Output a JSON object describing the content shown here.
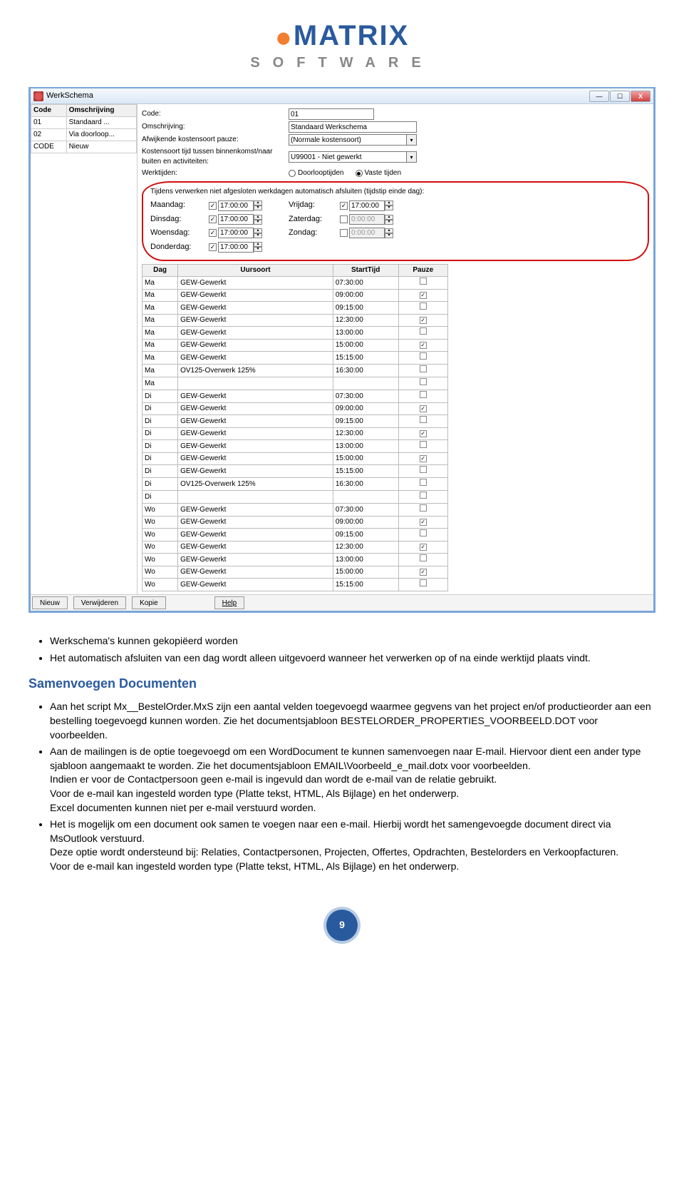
{
  "logo": {
    "main": "MATRIX",
    "sub": "SOFTWARE"
  },
  "window": {
    "title": "WerkSchema",
    "codelist": {
      "columns": [
        "Code",
        "Omschrijving"
      ],
      "rows": [
        [
          "01",
          "Standaard ..."
        ],
        [
          "02",
          "Via doorloop..."
        ],
        [
          "CODE",
          "Nieuw"
        ]
      ]
    },
    "form": {
      "code_label": "Code:",
      "code_value": "01",
      "desc_label": "Omschrijving:",
      "desc_value": "Standaard Werkschema",
      "pause_label": "Afwijkende kostensoort pauze:",
      "pause_value": "(Normale kostensoort)",
      "cost_label": "Kostensoort tijd tussen binnenkomst/naar buiten en activiteiten:",
      "cost_value": "U99001 - Niet gewerkt",
      "worktimes_label": "Werktijden:",
      "radio1": "Doorlooptijden",
      "radio2": "Vaste tijden"
    },
    "group": {
      "caption": "Tijdens verwerken niet afgesloten werkdagen automatisch afsluiten (tijdstip einde dag):",
      "days": [
        {
          "label": "Maandag:",
          "checked": true,
          "time": "17:00:00",
          "label2": "Vrijdag:",
          "checked2": true,
          "time2": "17:00:00",
          "dis2": false
        },
        {
          "label": "Dinsdag:",
          "checked": true,
          "time": "17:00:00",
          "label2": "Zaterdag:",
          "checked2": false,
          "time2": "0:00:00",
          "dis2": true
        },
        {
          "label": "Woensdag:",
          "checked": true,
          "time": "17:00:00",
          "label2": "Zondag:",
          "checked2": false,
          "time2": "0:00:00",
          "dis2": true
        },
        {
          "label": "Donderdag:",
          "checked": true,
          "time": "17:00:00",
          "label2": "",
          "checked2": false,
          "time2": "",
          "dis2": true
        }
      ]
    },
    "sched": {
      "columns": [
        "Dag",
        "Uursoort",
        "StartTijd",
        "Pauze"
      ],
      "rows": [
        [
          "Ma",
          "GEW-Gewerkt",
          "07:30:00",
          false
        ],
        [
          "Ma",
          "GEW-Gewerkt",
          "09:00:00",
          true
        ],
        [
          "Ma",
          "GEW-Gewerkt",
          "09:15:00",
          false
        ],
        [
          "Ma",
          "GEW-Gewerkt",
          "12:30:00",
          true
        ],
        [
          "Ma",
          "GEW-Gewerkt",
          "13:00:00",
          false
        ],
        [
          "Ma",
          "GEW-Gewerkt",
          "15:00:00",
          true
        ],
        [
          "Ma",
          "GEW-Gewerkt",
          "15:15:00",
          false
        ],
        [
          "Ma",
          "OV125-Overwerk 125%",
          "16:30:00",
          false
        ],
        [
          "Ma",
          "",
          "",
          false
        ],
        [
          "Di",
          "GEW-Gewerkt",
          "07:30:00",
          false
        ],
        [
          "Di",
          "GEW-Gewerkt",
          "09:00:00",
          true
        ],
        [
          "Di",
          "GEW-Gewerkt",
          "09:15:00",
          false
        ],
        [
          "Di",
          "GEW-Gewerkt",
          "12:30:00",
          true
        ],
        [
          "Di",
          "GEW-Gewerkt",
          "13:00:00",
          false
        ],
        [
          "Di",
          "GEW-Gewerkt",
          "15:00:00",
          true
        ],
        [
          "Di",
          "GEW-Gewerkt",
          "15:15:00",
          false
        ],
        [
          "Di",
          "OV125-Overwerk 125%",
          "16:30:00",
          false
        ],
        [
          "Di",
          "",
          "",
          false
        ],
        [
          "Wo",
          "GEW-Gewerkt",
          "07:30:00",
          false
        ],
        [
          "Wo",
          "GEW-Gewerkt",
          "09:00:00",
          true
        ],
        [
          "Wo",
          "GEW-Gewerkt",
          "09:15:00",
          false
        ],
        [
          "Wo",
          "GEW-Gewerkt",
          "12:30:00",
          true
        ],
        [
          "Wo",
          "GEW-Gewerkt",
          "13:00:00",
          false
        ],
        [
          "Wo",
          "GEW-Gewerkt",
          "15:00:00",
          true
        ],
        [
          "Wo",
          "GEW-Gewerkt",
          "15:15:00",
          false
        ]
      ]
    },
    "buttons": {
      "nieuw": "Nieuw",
      "verwijderen": "Verwijderen",
      "kopie": "Kopie",
      "help": "Help"
    }
  },
  "text": {
    "bullets1": [
      "Werkschema's kunnen gekopiëerd worden",
      "Het automatisch afsluiten van een dag wordt alleen uitgevoerd wanneer het verwerken op of na einde werktijd plaats vindt."
    ],
    "heading": "Samenvoegen Documenten",
    "bullets2": [
      "Aan het script Mx__BestelOrder.MxS zijn een aantal velden toegevoegd waarmee gegvens van het project en/of productieorder aan een bestelling toegevoegd kunnen worden. Zie het documentsjabloon BESTELORDER_PROPERTIES_VOORBEELD.DOT voor voorbeelden.",
      "Aan de mailingen is de optie toegevoegd om een WordDocument te kunnen samenvoegen naar E-mail. Hiervoor dient een ander type sjabloon aangemaakt te worden. Zie het documentsjabloon EMAIL\\Voorbeeld_e_mail.dotx voor voorbeelden.\nIndien er voor de Contactpersoon geen e-mail is ingevuld dan wordt de e-mail van de relatie gebruikt.\nVoor de e-mail kan ingesteld worden type (Platte tekst, HTML, Als Bijlage) en het onderwerp.\nExcel documenten kunnen niet per e-mail verstuurd worden.",
      "Het is mogelijk om een document ook samen te voegen naar een e-mail. Hierbij wordt het samengevoegde document direct via MsOutlook verstuurd.\nDeze optie wordt ondersteund bij: Relaties, Contactpersonen, Projecten, Offertes, Opdrachten, Bestelorders en Verkoopfacturen.\nVoor de e-mail kan ingesteld worden type (Platte tekst, HTML, Als Bijlage) en het onderwerp."
    ]
  },
  "page_number": "9"
}
